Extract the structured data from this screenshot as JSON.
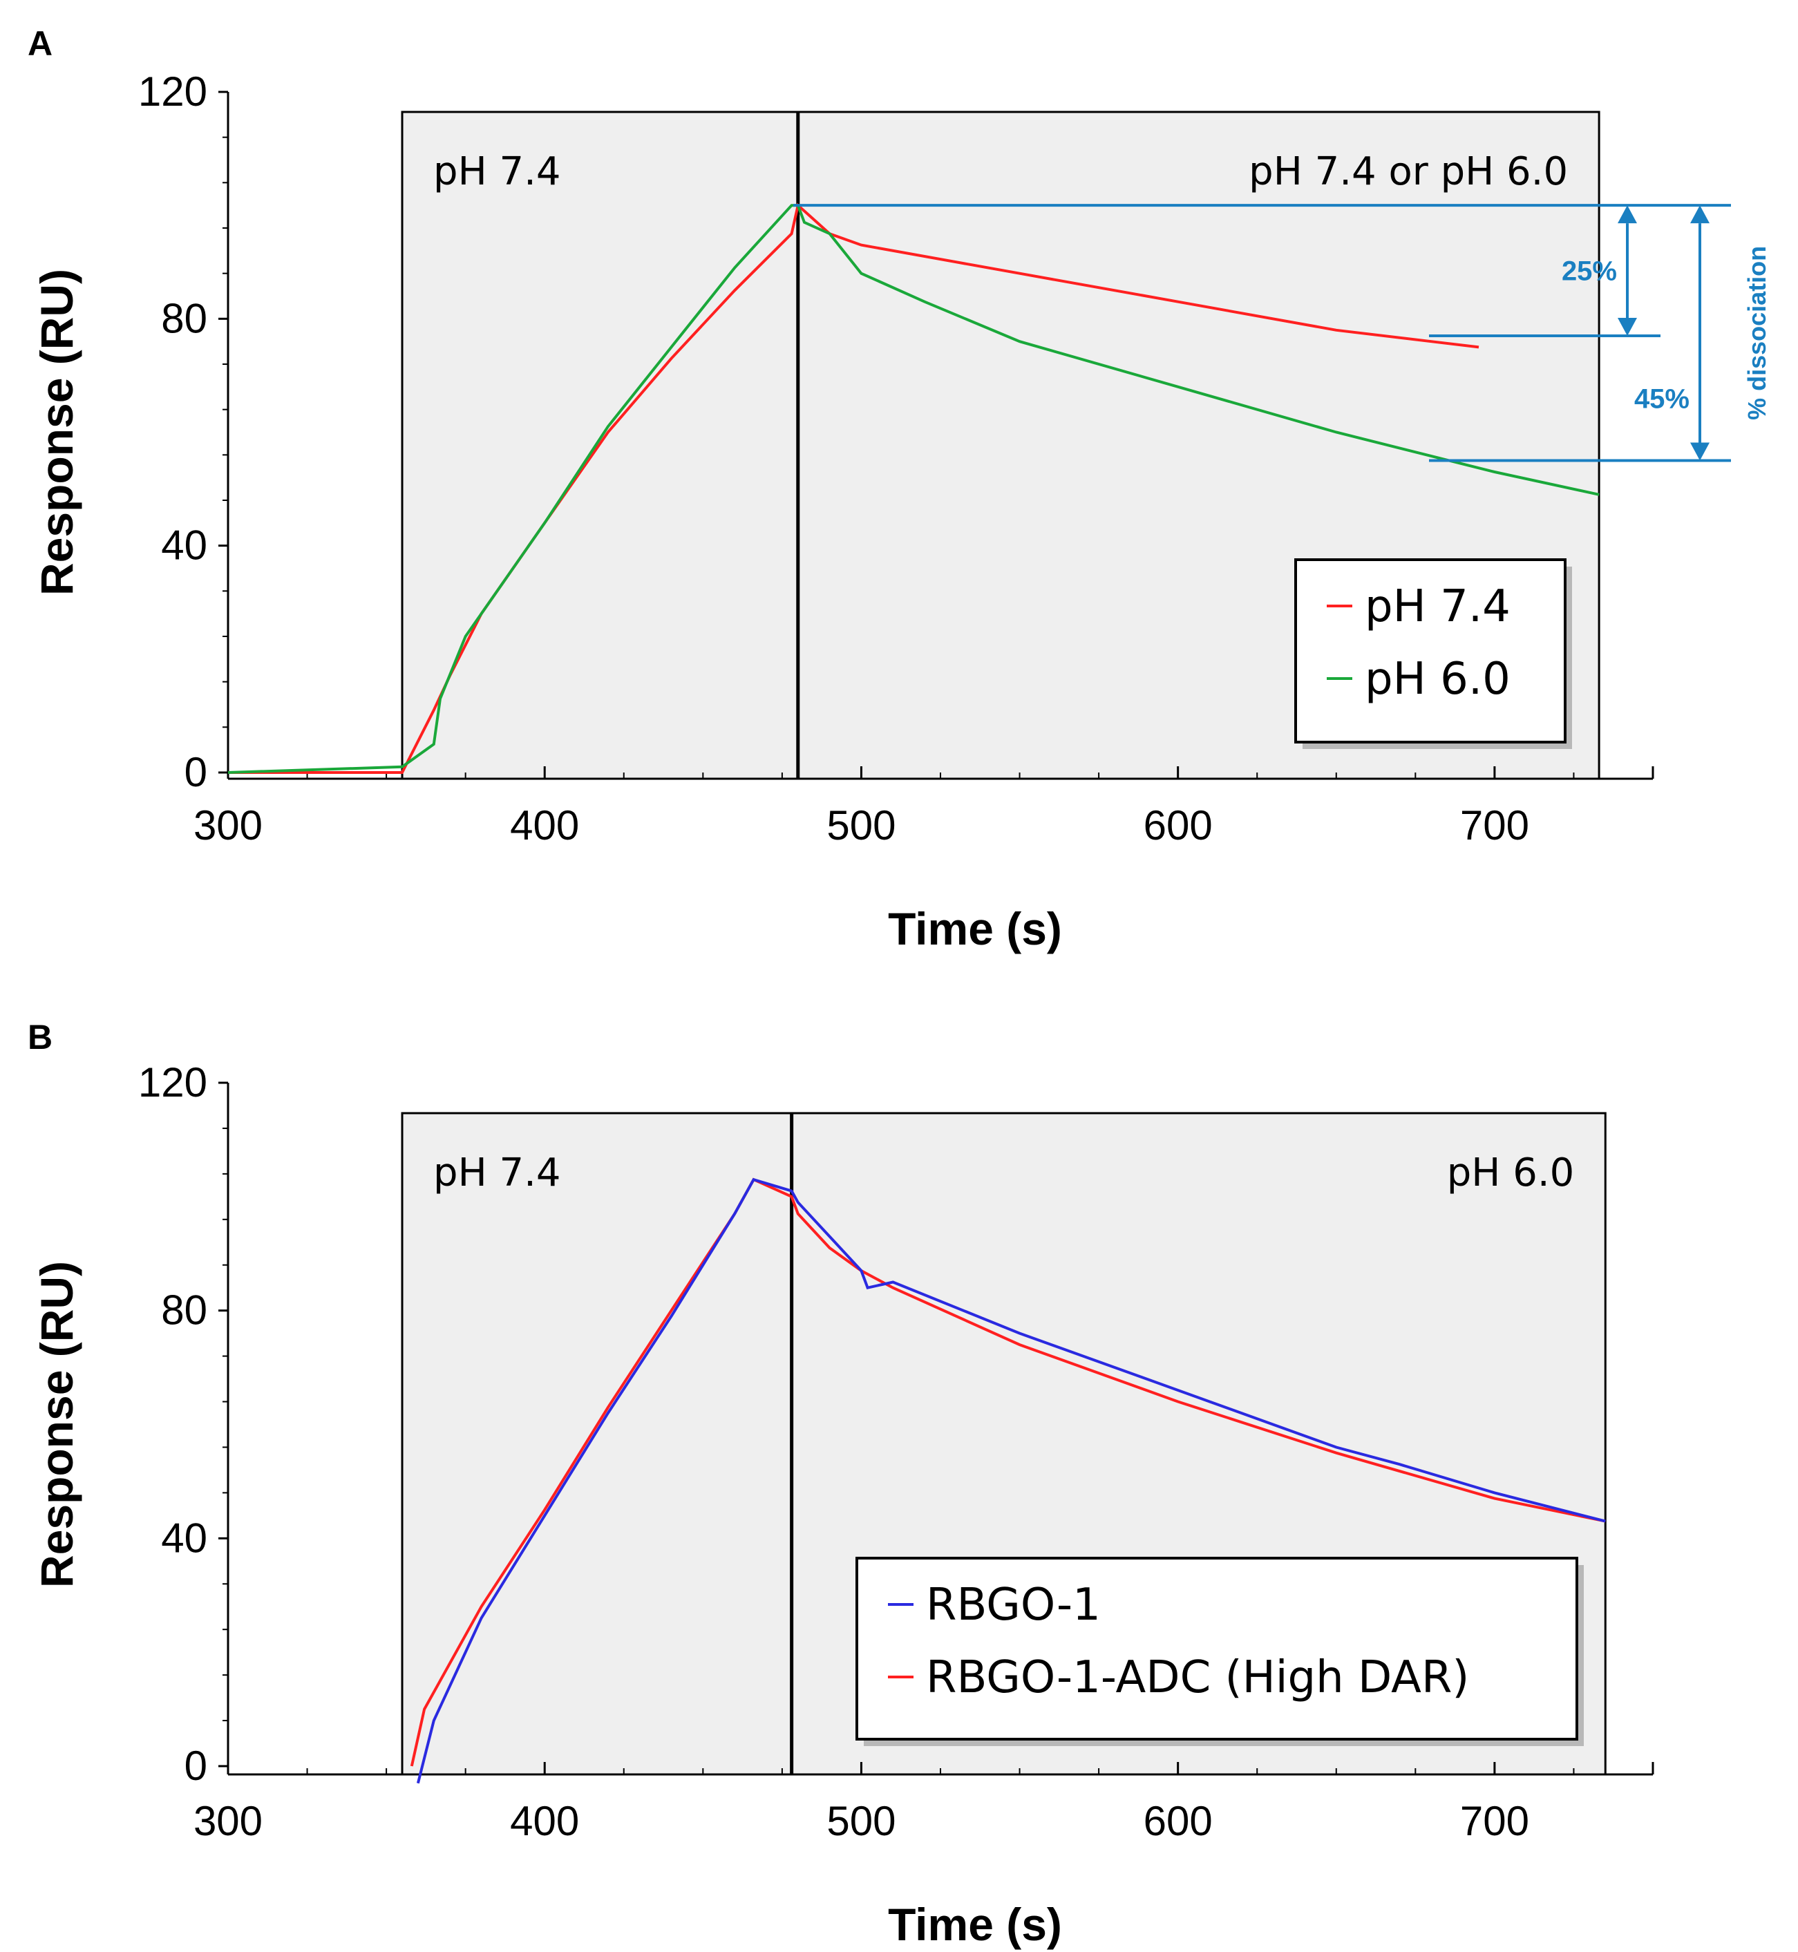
{
  "chart_data": [
    {
      "panel": "A",
      "type": "line",
      "xlabel": "Time (s)",
      "ylabel": "Response (RU)",
      "xlim": [
        300,
        750
      ],
      "ylim": [
        0,
        120
      ],
      "xticks": [
        300,
        400,
        500,
        600,
        700
      ],
      "yticks": [
        0,
        40,
        80,
        120
      ],
      "phases": [
        {
          "label": "pH 7.4",
          "start": 355,
          "end": 480
        },
        {
          "label": "pH 7.4 or pH 6.0",
          "start": 480,
          "end": 733
        }
      ],
      "legend": "bottom-right",
      "series": [
        {
          "name": "pH 7.4",
          "color": "#ff2020",
          "x": [
            300,
            355,
            365,
            370,
            380,
            400,
            420,
            440,
            460,
            478,
            480,
            482,
            490,
            500,
            550,
            600,
            650,
            680,
            695
          ],
          "y": [
            0,
            0,
            11,
            17,
            28,
            44,
            60,
            73,
            85,
            95,
            100,
            99,
            95,
            93,
            88,
            83,
            78,
            76,
            75
          ]
        },
        {
          "name": "pH 6.0",
          "color": "#1aa83a",
          "x": [
            300,
            355,
            365,
            367,
            375,
            400,
            420,
            440,
            460,
            478,
            480,
            482,
            490,
            500,
            520,
            550,
            600,
            650,
            700,
            733
          ],
          "y": [
            0,
            1,
            5,
            13,
            24,
            44,
            61,
            75,
            89,
            100,
            100,
            97,
            95,
            88,
            83,
            76,
            68,
            60,
            53,
            49
          ]
        }
      ],
      "annotations": [
        {
          "label": "25%",
          "from": 100,
          "to": 77
        },
        {
          "label": "45%",
          "from": 100,
          "to": 55
        },
        {
          "label": "% dissociation"
        }
      ]
    },
    {
      "panel": "B",
      "type": "line",
      "xlabel": "Time (s)",
      "ylabel": "Response (RU)",
      "xlim": [
        300,
        750
      ],
      "ylim": [
        0,
        120
      ],
      "xticks": [
        300,
        400,
        500,
        600,
        700
      ],
      "yticks": [
        0,
        40,
        80,
        120
      ],
      "phases": [
        {
          "label": "pH 7.4",
          "start": 355,
          "end": 478
        },
        {
          "label": "pH 6.0",
          "start": 478,
          "end": 735
        }
      ],
      "legend": "bottom-right",
      "series": [
        {
          "name": "RBGO-1",
          "color": "#2a2ae0",
          "x": [
            360,
            365,
            380,
            400,
            420,
            440,
            460,
            466,
            478,
            480,
            490,
            500,
            502,
            510,
            550,
            600,
            650,
            670,
            700,
            735
          ],
          "y": [
            -3,
            8,
            26,
            44,
            62,
            79,
            97,
            103,
            101,
            99,
            93,
            87,
            84,
            85,
            76,
            66,
            56,
            53,
            48,
            43
          ]
        },
        {
          "name": "RBGO-1-ADC (High DAR)",
          "color": "#ff2020",
          "x": [
            358,
            362,
            380,
            400,
            420,
            440,
            460,
            466,
            478,
            480,
            490,
            500,
            510,
            550,
            600,
            650,
            700,
            735
          ],
          "y": [
            0,
            10,
            28,
            45,
            63,
            80,
            97,
            103,
            100,
            97,
            91,
            87,
            84,
            74,
            64,
            55,
            47,
            43
          ]
        }
      ],
      "annotations": []
    }
  ]
}
